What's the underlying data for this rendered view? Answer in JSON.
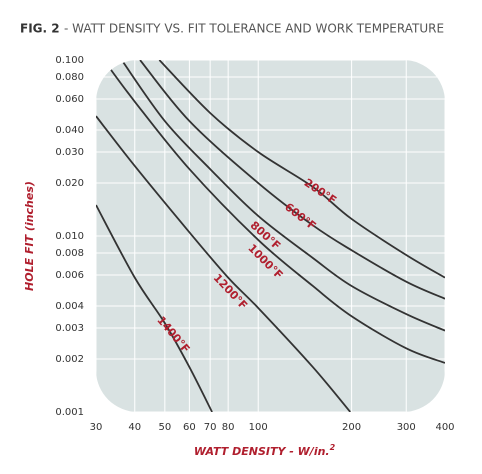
{
  "chart_data": {
    "type": "line",
    "figure_label": "FIG. 2",
    "title": "- WATT DENSITY VS. FIT TOLERANCE AND WORK TEMPERATURE",
    "x_label": "WATT DENSITY - W/in.",
    "x_label_superscript": "2",
    "y_label": "HOLE FIT (inches)",
    "log_x": true,
    "log_y": true,
    "grid": true,
    "background": "#d9e2e2",
    "grid_color": "#ffffff",
    "label_color": "#b01f2e",
    "xlim": [
      30,
      400
    ],
    "ylim": [
      0.001,
      0.1
    ],
    "xticks": [
      30,
      40,
      50,
      60,
      70,
      80,
      100,
      200,
      300,
      400
    ],
    "yticks": [
      {
        "value": 0.1,
        "label": "0.100"
      },
      {
        "value": 0.08,
        "label": "0.080"
      },
      {
        "value": 0.06,
        "label": "0.060"
      },
      {
        "value": 0.04,
        "label": "0.040"
      },
      {
        "value": 0.03,
        "label": "0.030"
      },
      {
        "value": 0.02,
        "label": "0.020"
      },
      {
        "value": 0.01,
        "label": "0.010"
      },
      {
        "value": 0.008,
        "label": "0.008"
      },
      {
        "value": 0.006,
        "label": "0.006"
      },
      {
        "value": 0.004,
        "label": "0.004"
      },
      {
        "value": 0.003,
        "label": "0.003"
      },
      {
        "value": 0.002,
        "label": "0.002"
      },
      {
        "value": 0.001,
        "label": "0.001"
      }
    ],
    "series": [
      {
        "name": "200°F",
        "color": "#333333",
        "x": [
          48,
          70,
          100,
          150,
          200,
          300,
          400
        ],
        "values": [
          0.1,
          0.05,
          0.03,
          0.019,
          0.0125,
          0.0078,
          0.0058
        ]
      },
      {
        "name": "600°F",
        "color": "#333333",
        "x": [
          41.6,
          60,
          100,
          150,
          200,
          300,
          400
        ],
        "values": [
          0.1,
          0.045,
          0.02,
          0.0115,
          0.0083,
          0.0055,
          0.0044
        ]
      },
      {
        "name": "800°F",
        "color": "#333333",
        "x": [
          36.3,
          50,
          70,
          100,
          150,
          200,
          300,
          400
        ],
        "values": [
          0.1,
          0.045,
          0.024,
          0.013,
          0.0075,
          0.0052,
          0.0036,
          0.0029
        ]
      },
      {
        "name": "1000°F",
        "color": "#333333",
        "x": [
          31.8,
          40,
          60,
          100,
          150,
          200,
          300,
          400
        ],
        "values": [
          0.1,
          0.058,
          0.024,
          0.0095,
          0.0052,
          0.0035,
          0.0023,
          0.0019
        ]
      },
      {
        "name": "1200°F",
        "color": "#333333",
        "x": [
          30,
          40,
          60,
          80,
          100,
          150,
          198
        ],
        "values": [
          0.048,
          0.025,
          0.0105,
          0.0058,
          0.0039,
          0.0018,
          0.001
        ]
      },
      {
        "name": "1400°F",
        "color": "#333333",
        "x": [
          30,
          40,
          50,
          60,
          71
        ],
        "values": [
          0.015,
          0.0058,
          0.0032,
          0.0018,
          0.001
        ]
      }
    ]
  }
}
